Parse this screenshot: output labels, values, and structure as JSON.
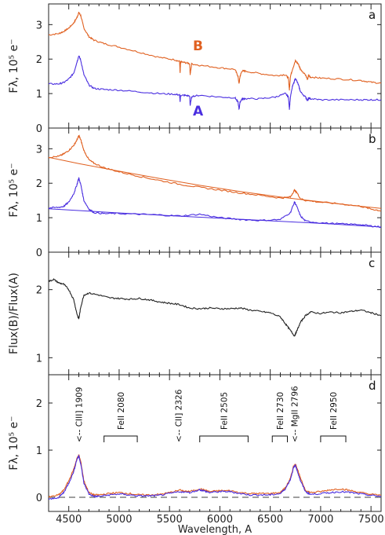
{
  "chart_data": [
    {
      "panel": "a",
      "type": "line",
      "ylabel": "Fλ, 10⁵ e⁻",
      "ylim": [
        0,
        3.6
      ],
      "yticks": [
        0,
        1,
        2,
        3
      ],
      "xlim": [
        4300,
        7600
      ],
      "series_labels": [
        "B",
        "A"
      ],
      "series": [
        {
          "name": "B",
          "color": "#e06020",
          "x": [
            4300,
            4400,
            4450,
            4500,
            4550,
            4580,
            4600,
            4620,
            4650,
            4700,
            4750,
            4850,
            5000,
            5200,
            5400,
            5550,
            5600,
            5605,
            5610,
            5650,
            5700,
            5705,
            5720,
            5800,
            6000,
            6150,
            6180,
            6190,
            6200,
            6220,
            6250,
            6400,
            6550,
            6650,
            6680,
            6690,
            6700,
            6720,
            6750,
            6780,
            6800,
            6850,
            6870,
            6880,
            6900,
            7000,
            7200,
            7400,
            7500,
            7600
          ],
          "y": [
            2.7,
            2.74,
            2.8,
            2.9,
            3.05,
            3.2,
            3.35,
            3.25,
            2.9,
            2.65,
            2.55,
            2.45,
            2.35,
            2.2,
            2.05,
            1.98,
            1.93,
            1.58,
            1.92,
            1.9,
            1.87,
            1.55,
            1.86,
            1.82,
            1.75,
            1.7,
            1.5,
            1.28,
            1.5,
            1.66,
            1.65,
            1.58,
            1.52,
            1.55,
            1.45,
            1.1,
            1.5,
            1.7,
            1.95,
            1.85,
            1.7,
            1.55,
            1.4,
            1.52,
            1.48,
            1.45,
            1.42,
            1.38,
            1.33,
            1.3
          ]
        },
        {
          "name": "A",
          "color": "#4a2ee0",
          "x": [
            4300,
            4400,
            4450,
            4500,
            4550,
            4580,
            4600,
            4620,
            4650,
            4700,
            4750,
            4850,
            5000,
            5200,
            5400,
            5550,
            5600,
            5605,
            5610,
            5650,
            5700,
            5705,
            5720,
            5800,
            6000,
            6150,
            6180,
            6190,
            6200,
            6220,
            6250,
            6400,
            6550,
            6650,
            6680,
            6690,
            6700,
            6720,
            6750,
            6780,
            6800,
            6850,
            6870,
            6880,
            6900,
            7000,
            7200,
            7400,
            7500,
            7600
          ],
          "y": [
            1.28,
            1.28,
            1.32,
            1.42,
            1.6,
            1.9,
            2.1,
            1.95,
            1.55,
            1.25,
            1.15,
            1.12,
            1.1,
            1.05,
            1.0,
            0.98,
            0.96,
            0.75,
            0.95,
            0.95,
            0.93,
            0.65,
            0.92,
            0.95,
            0.9,
            0.88,
            0.75,
            0.55,
            0.75,
            0.85,
            0.85,
            0.85,
            0.9,
            1.0,
            0.9,
            0.55,
            0.9,
            1.2,
            1.45,
            1.25,
            1.05,
            0.9,
            0.8,
            0.87,
            0.85,
            0.82,
            0.82,
            0.82,
            0.82,
            0.82
          ]
        }
      ]
    },
    {
      "panel": "b",
      "type": "line",
      "ylabel": "Fλ, 10⁵ e⁻",
      "ylim": [
        0,
        3.6
      ],
      "yticks": [
        0,
        1,
        2,
        3
      ],
      "xlim": [
        4300,
        7600
      ],
      "series": [
        {
          "name": "B",
          "color": "#e06020",
          "x": [
            4300,
            4400,
            4450,
            4500,
            4550,
            4580,
            4600,
            4620,
            4650,
            4700,
            4750,
            4850,
            5000,
            5200,
            5400,
            5600,
            5800,
            6000,
            6200,
            6400,
            6600,
            6700,
            6740,
            6760,
            6800,
            6850,
            7000,
            7200,
            7400,
            7500,
            7600
          ],
          "y": [
            2.75,
            2.78,
            2.85,
            2.95,
            3.1,
            3.25,
            3.38,
            3.25,
            2.95,
            2.68,
            2.58,
            2.45,
            2.33,
            2.2,
            2.08,
            1.97,
            1.88,
            1.8,
            1.72,
            1.65,
            1.57,
            1.6,
            1.8,
            1.75,
            1.55,
            1.5,
            1.45,
            1.4,
            1.33,
            1.25,
            1.2
          ]
        },
        {
          "name": "B continuum",
          "color": "#e06020",
          "x": [
            4300,
            4600,
            5000,
            5400,
            5800,
            6200,
            6600,
            7000,
            7400,
            7600
          ],
          "y": [
            2.75,
            2.57,
            2.35,
            2.14,
            1.94,
            1.76,
            1.6,
            1.46,
            1.33,
            1.27
          ]
        },
        {
          "name": "A",
          "color": "#4a2ee0",
          "x": [
            4300,
            4400,
            4450,
            4500,
            4550,
            4580,
            4600,
            4620,
            4650,
            4700,
            4750,
            4850,
            5000,
            5200,
            5400,
            5600,
            5800,
            6000,
            6200,
            6400,
            6600,
            6700,
            6740,
            6760,
            6800,
            6850,
            7000,
            7200,
            7400,
            7500,
            7600
          ],
          "y": [
            1.28,
            1.3,
            1.33,
            1.45,
            1.7,
            1.95,
            2.15,
            1.95,
            1.5,
            1.25,
            1.15,
            1.12,
            1.12,
            1.1,
            1.08,
            1.05,
            1.1,
            1.0,
            0.95,
            0.92,
            0.95,
            1.15,
            1.45,
            1.35,
            1.05,
            0.9,
            0.85,
            0.82,
            0.8,
            0.76,
            0.73
          ]
        },
        {
          "name": "A continuum",
          "color": "#4a2ee0",
          "x": [
            4300,
            4700,
            5100,
            5500,
            5900,
            6300,
            6700,
            7100,
            7600
          ],
          "y": [
            1.26,
            1.19,
            1.12,
            1.06,
            1.0,
            0.94,
            0.88,
            0.82,
            0.73
          ]
        }
      ]
    },
    {
      "panel": "c",
      "type": "line",
      "ylabel": "Flux(B)/Flux(A)",
      "ylim": [
        0.75,
        2.55
      ],
      "yticks": [
        1,
        2
      ],
      "xlim": [
        4300,
        7600
      ],
      "series": [
        {
          "name": "Flux(B)/Flux(A)",
          "color": "#222222",
          "x": [
            4300,
            4350,
            4400,
            4450,
            4500,
            4550,
            4580,
            4600,
            4620,
            4650,
            4700,
            4800,
            4900,
            5000,
            5100,
            5200,
            5300,
            5400,
            5500,
            5600,
            5700,
            5800,
            5900,
            6000,
            6100,
            6200,
            6300,
            6400,
            6500,
            6600,
            6650,
            6700,
            6740,
            6760,
            6800,
            6850,
            6900,
            7000,
            7100,
            7200,
            7300,
            7400,
            7500,
            7600
          ],
          "y": [
            2.12,
            2.15,
            2.1,
            2.08,
            2.0,
            1.85,
            1.65,
            1.57,
            1.75,
            1.92,
            1.95,
            1.92,
            1.88,
            1.87,
            1.86,
            1.87,
            1.85,
            1.82,
            1.8,
            1.78,
            1.73,
            1.72,
            1.73,
            1.72,
            1.72,
            1.73,
            1.7,
            1.68,
            1.66,
            1.6,
            1.5,
            1.4,
            1.32,
            1.38,
            1.52,
            1.62,
            1.67,
            1.65,
            1.67,
            1.66,
            1.68,
            1.7,
            1.66,
            1.62
          ]
        }
      ]
    },
    {
      "panel": "d",
      "type": "line",
      "ylabel": "Fλ, 10⁵ e⁻",
      "ylim": [
        -0.3,
        2.6
      ],
      "yticks": [
        0,
        1,
        2
      ],
      "xlim": [
        4300,
        7600
      ],
      "xlabel": "Wavelength, A",
      "xticks": [
        4500,
        5000,
        5500,
        6000,
        6500,
        7000,
        7500
      ],
      "zero_line": "dashed",
      "series": [
        {
          "name": "B",
          "color": "#e06020",
          "x": [
            4300,
            4400,
            4450,
            4500,
            4550,
            4580,
            4600,
            4620,
            4650,
            4700,
            4750,
            4800,
            4900,
            5000,
            5100,
            5200,
            5300,
            5400,
            5500,
            5600,
            5700,
            5800,
            5850,
            5900,
            6000,
            6100,
            6200,
            6300,
            6400,
            6500,
            6600,
            6650,
            6700,
            6730,
            6750,
            6770,
            6800,
            6850,
            6900,
            7000,
            7100,
            7200,
            7300,
            7400,
            7500,
            7600
          ],
          "y": [
            0.0,
            0.05,
            0.15,
            0.35,
            0.6,
            0.82,
            0.9,
            0.75,
            0.35,
            0.1,
            0.05,
            0.05,
            0.08,
            0.1,
            0.08,
            0.05,
            0.05,
            0.06,
            0.1,
            0.15,
            0.12,
            0.18,
            0.15,
            0.12,
            0.14,
            0.14,
            0.1,
            0.08,
            0.08,
            0.08,
            0.1,
            0.2,
            0.4,
            0.65,
            0.7,
            0.6,
            0.4,
            0.15,
            0.1,
            0.12,
            0.16,
            0.18,
            0.14,
            0.1,
            0.06,
            0.05
          ]
        },
        {
          "name": "A",
          "color": "#4a2ee0",
          "x": [
            4300,
            4400,
            4450,
            4500,
            4550,
            4580,
            4600,
            4620,
            4650,
            4700,
            4750,
            4800,
            4900,
            5000,
            5100,
            5200,
            5300,
            5400,
            5500,
            5600,
            5700,
            5800,
            5850,
            5900,
            6000,
            6100,
            6200,
            6300,
            6400,
            6500,
            6600,
            6650,
            6700,
            6730,
            6750,
            6770,
            6800,
            6850,
            6900,
            7000,
            7100,
            7200,
            7300,
            7400,
            7500,
            7600
          ],
          "y": [
            -0.05,
            0.0,
            0.1,
            0.3,
            0.55,
            0.8,
            0.88,
            0.7,
            0.3,
            0.07,
            0.02,
            0.02,
            0.05,
            0.07,
            0.05,
            0.03,
            0.03,
            0.04,
            0.08,
            0.12,
            0.1,
            0.16,
            0.13,
            0.1,
            0.12,
            0.12,
            0.08,
            0.05,
            0.05,
            0.05,
            0.08,
            0.18,
            0.38,
            0.62,
            0.68,
            0.55,
            0.35,
            0.12,
            0.06,
            0.08,
            0.1,
            0.12,
            0.1,
            0.07,
            0.04,
            0.02
          ]
        }
      ]
    }
  ],
  "panel_labels": [
    "a",
    "b",
    "c",
    "d"
  ],
  "line_annotations": [
    {
      "text": "<-- CIII] 1909",
      "x": 4600,
      "kind": "arrow"
    },
    {
      "text": "<-- CII] 2326",
      "x": 5590,
      "kind": "arrow"
    },
    {
      "text": "<-- MgII 2796",
      "x": 6740,
      "kind": "arrow"
    },
    {
      "text": "FeII 2080",
      "x0": 4850,
      "x1": 5180,
      "kind": "bracket"
    },
    {
      "text": "FeII 2505",
      "x0": 5800,
      "x1": 6280,
      "kind": "bracket"
    },
    {
      "text": "FeII 2730",
      "x0": 6520,
      "x1": 6670,
      "kind": "bracket"
    },
    {
      "text": "FeII 2950",
      "x0": 7000,
      "x1": 7250,
      "kind": "bracket"
    }
  ]
}
